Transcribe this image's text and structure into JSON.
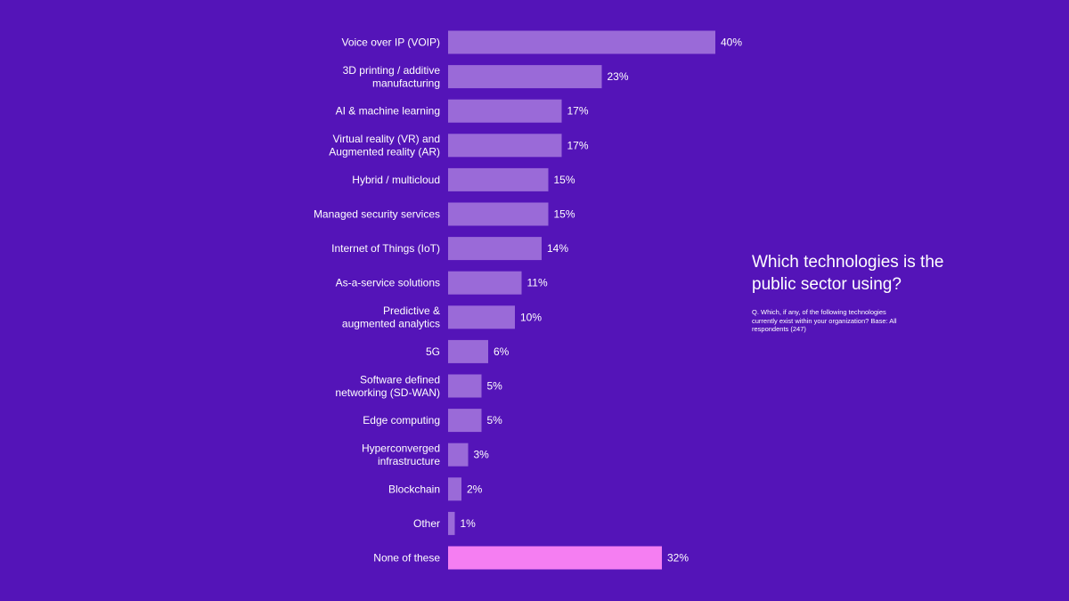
{
  "colors": {
    "background": "#5414b8",
    "bar": "#9a6ad8",
    "highlight_bar": "#f57ef2",
    "text": "#ffffff"
  },
  "chart_data": {
    "type": "bar",
    "orientation": "horizontal",
    "title": "Which technologies is the public sector using?",
    "note": "Q. Which, if any, of the following technologies currently exist within your organization? Base: All respondents (247)",
    "xlim": [
      0,
      40
    ],
    "grid": false,
    "unit": "%",
    "categories": [
      [
        "Voice over IP (VOIP)"
      ],
      [
        "3D printing / additive",
        "manufacturing"
      ],
      [
        "AI & machine learning"
      ],
      [
        "Virtual reality (VR) and",
        "Augmented reality (AR)"
      ],
      [
        "Hybrid / multicloud"
      ],
      [
        "Managed security services"
      ],
      [
        "Internet of Things (IoT)"
      ],
      [
        "As-a-service solutions"
      ],
      [
        "Predictive &",
        "augmented analytics"
      ],
      [
        "5G"
      ],
      [
        "Software defined",
        "networking (SD-WAN)"
      ],
      [
        "Edge computing"
      ],
      [
        "Hyperconverged",
        "infrastructure"
      ],
      [
        "Blockchain"
      ],
      [
        "Other"
      ],
      [
        "None of these"
      ]
    ],
    "values": [
      40,
      23,
      17,
      17,
      15,
      15,
      14,
      11,
      10,
      6,
      5,
      5,
      3,
      2,
      1,
      32
    ],
    "value_labels": [
      "40%",
      "23%",
      "17%",
      "17%",
      "15%",
      "15%",
      "14%",
      "11%",
      "10%",
      "6%",
      "5%",
      "5%",
      "3%",
      "2%",
      "1%",
      "32%"
    ],
    "highlighted": [
      false,
      false,
      false,
      false,
      false,
      false,
      false,
      false,
      false,
      false,
      false,
      false,
      false,
      false,
      false,
      true
    ]
  }
}
